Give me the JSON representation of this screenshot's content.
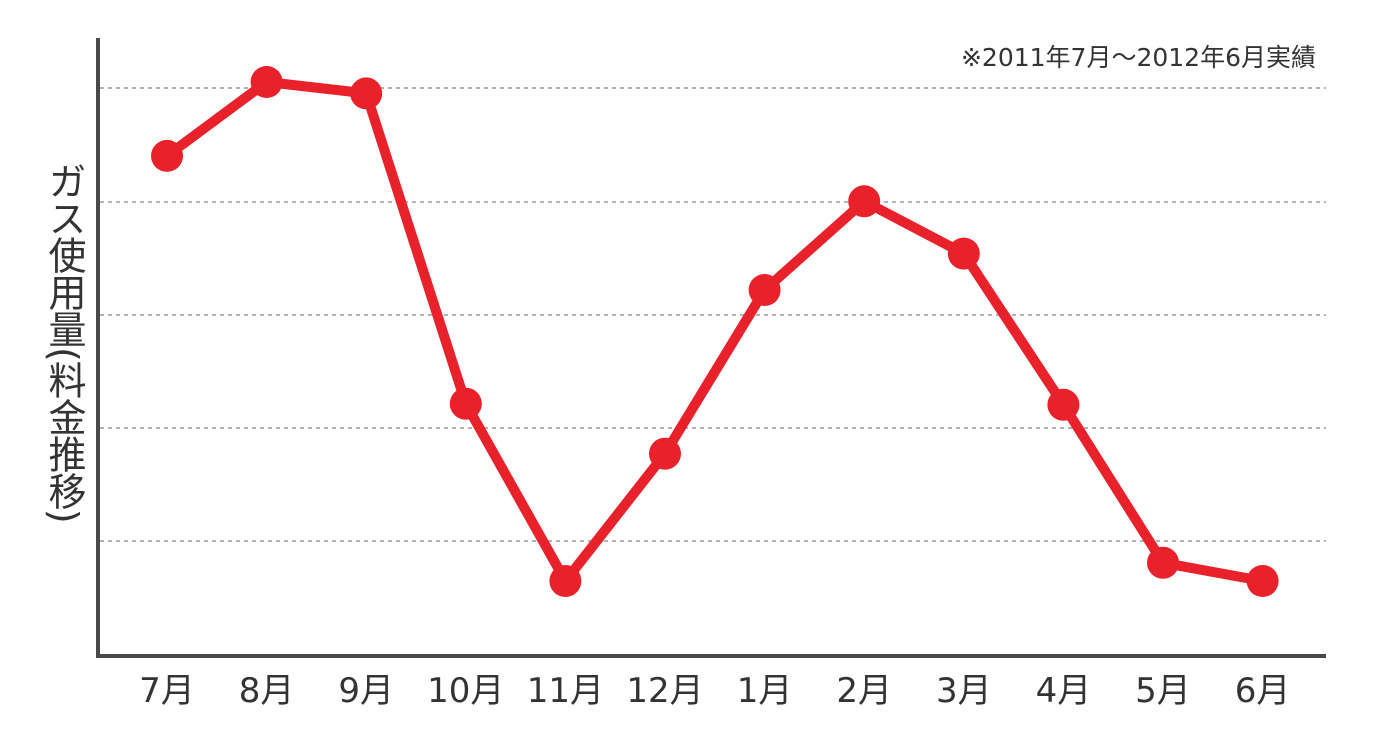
{
  "chart_data": {
    "type": "line",
    "title": "",
    "note": "※2011年7月～2012年6月実績",
    "xlabel": "",
    "ylabel": "ガス使用量(料金推移)",
    "categories": [
      "7月",
      "8月",
      "9月",
      "10月",
      "11月",
      "12月",
      "1月",
      "2月",
      "3月",
      "4月",
      "5月",
      "6月"
    ],
    "series": [
      {
        "values": [
          4.4,
          5.05,
          4.95,
          2.22,
          0.66,
          1.78,
          3.22,
          4.0,
          3.54,
          2.21,
          0.82,
          0.66
        ]
      }
    ],
    "ylim": [
      0,
      5.05
    ],
    "grid": true,
    "line_color": "#e8212b",
    "axis_color": "#4a4a4a",
    "grid_color": "#9a9a9a"
  }
}
